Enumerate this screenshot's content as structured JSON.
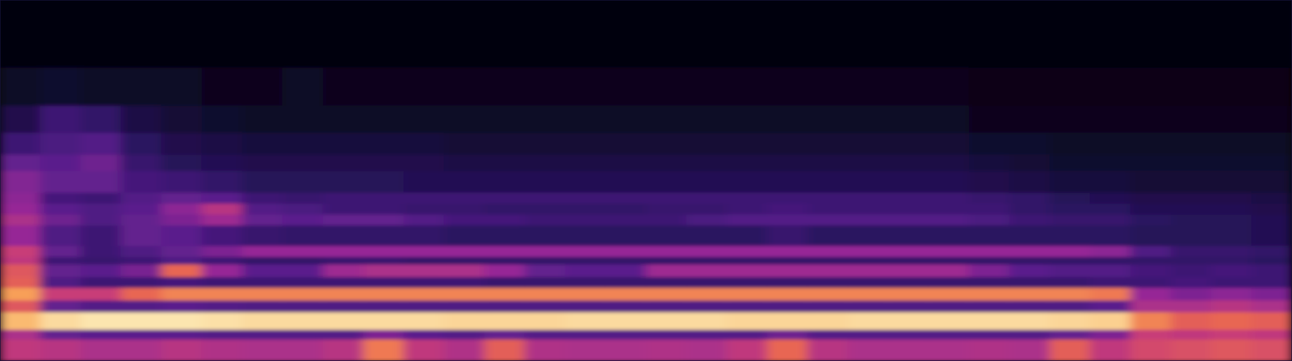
{
  "chart_data": {
    "type": "heatmap",
    "tick_labels": false,
    "xlim": [
      0,
      32
    ],
    "ylim": [
      0,
      664
    ],
    "zlim": [
      0,
      100
    ],
    "x_bins": [
      0,
      1,
      2,
      3,
      4,
      5,
      6,
      7,
      8,
      9,
      10,
      11,
      12,
      13,
      14,
      15,
      16,
      17,
      18,
      19,
      20,
      21,
      22,
      23,
      24,
      25,
      26,
      27,
      28,
      29,
      30,
      31,
      32
    ],
    "y_bins": [
      0,
      40,
      58,
      90,
      112,
      135,
      155,
      178,
      192,
      212,
      250,
      270,
      290,
      310,
      350,
      380,
      420,
      470,
      540,
      664
    ],
    "cells": [
      [
        60,
        58,
        55,
        55,
        58,
        56,
        55,
        55,
        58,
        78,
        60,
        56,
        72,
        56,
        55,
        55,
        56,
        55,
        60,
        74,
        58,
        55,
        55,
        55,
        56,
        55,
        72,
        60,
        66,
        68,
        70,
        68
      ],
      [
        55,
        40,
        38,
        38,
        38,
        36,
        36,
        36,
        36,
        45,
        38,
        36,
        40,
        36,
        36,
        36,
        36,
        36,
        36,
        42,
        36,
        36,
        36,
        36,
        36,
        36,
        40,
        45,
        62,
        60,
        62,
        60
      ],
      [
        90,
        96,
        98,
        98,
        98,
        97,
        96,
        96,
        96,
        96,
        96,
        95,
        95,
        95,
        96,
        96,
        96,
        96,
        95,
        95,
        95,
        96,
        96,
        96,
        96,
        96,
        95,
        94,
        80,
        72,
        74,
        72
      ],
      [
        70,
        40,
        36,
        36,
        38,
        36,
        35,
        35,
        35,
        35,
        35,
        35,
        35,
        35,
        35,
        35,
        35,
        35,
        35,
        35,
        35,
        35,
        35,
        35,
        35,
        35,
        35,
        38,
        55,
        55,
        58,
        55
      ],
      [
        85,
        62,
        62,
        74,
        80,
        80,
        80,
        80,
        80,
        80,
        80,
        80,
        80,
        80,
        80,
        80,
        80,
        80,
        80,
        80,
        80,
        80,
        80,
        80,
        80,
        80,
        80,
        78,
        50,
        45,
        48,
        45
      ],
      [
        72,
        35,
        30,
        30,
        32,
        30,
        30,
        30,
        30,
        30,
        30,
        30,
        28,
        28,
        28,
        28,
        28,
        28,
        28,
        28,
        28,
        28,
        28,
        28,
        28,
        28,
        28,
        30,
        30,
        32,
        30,
        30
      ],
      [
        70,
        40,
        38,
        44,
        74,
        50,
        38,
        38,
        52,
        55,
        55,
        55,
        50,
        40,
        38,
        38,
        52,
        52,
        52,
        52,
        52,
        52,
        52,
        52,
        45,
        38,
        36,
        36,
        32,
        30,
        32,
        30
      ],
      [
        60,
        30,
        28,
        30,
        35,
        30,
        26,
        26,
        28,
        28,
        26,
        26,
        26,
        26,
        26,
        26,
        26,
        26,
        26,
        26,
        26,
        26,
        26,
        26,
        26,
        26,
        26,
        26,
        26,
        26,
        26,
        24
      ],
      [
        62,
        40,
        30,
        35,
        40,
        45,
        50,
        50,
        50,
        50,
        50,
        50,
        50,
        50,
        50,
        50,
        50,
        50,
        50,
        50,
        50,
        50,
        50,
        50,
        50,
        50,
        50,
        48,
        35,
        28,
        28,
        26
      ],
      [
        50,
        35,
        30,
        40,
        38,
        32,
        28,
        26,
        26,
        26,
        26,
        24,
        24,
        24,
        24,
        24,
        24,
        24,
        24,
        28,
        24,
        24,
        24,
        24,
        24,
        24,
        24,
        24,
        22,
        22,
        22,
        20
      ],
      [
        55,
        42,
        35,
        40,
        45,
        52,
        40,
        38,
        40,
        40,
        36,
        32,
        32,
        30,
        30,
        30,
        30,
        34,
        36,
        36,
        36,
        36,
        36,
        36,
        34,
        30,
        28,
        28,
        24,
        22,
        22,
        20
      ],
      [
        50,
        38,
        35,
        38,
        48,
        58,
        36,
        34,
        30,
        30,
        28,
        28,
        26,
        26,
        26,
        26,
        28,
        28,
        30,
        32,
        30,
        30,
        30,
        30,
        30,
        26,
        24,
        24,
        20,
        20,
        20,
        18
      ],
      [
        48,
        32,
        30,
        36,
        40,
        38,
        30,
        28,
        30,
        30,
        30,
        30,
        30,
        30,
        30,
        30,
        30,
        30,
        30,
        30,
        30,
        30,
        30,
        30,
        28,
        26,
        22,
        20,
        18,
        18,
        18,
        16
      ],
      [
        46,
        40,
        40,
        32,
        30,
        26,
        22,
        22,
        22,
        22,
        20,
        20,
        20,
        20,
        20,
        20,
        20,
        20,
        20,
        20,
        20,
        20,
        20,
        20,
        18,
        16,
        14,
        14,
        12,
        12,
        12,
        12
      ],
      [
        40,
        38,
        42,
        28,
        22,
        20,
        18,
        18,
        18,
        18,
        18,
        16,
        16,
        16,
        16,
        16,
        16,
        16,
        16,
        16,
        16,
        16,
        16,
        16,
        14,
        12,
        10,
        10,
        10,
        10,
        10,
        10
      ],
      [
        30,
        34,
        36,
        24,
        18,
        16,
        14,
        14,
        14,
        14,
        14,
        12,
        12,
        12,
        12,
        12,
        12,
        12,
        12,
        12,
        12,
        12,
        12,
        12,
        10,
        10,
        8,
        8,
        8,
        8,
        8,
        8
      ],
      [
        18,
        30,
        26,
        16,
        12,
        10,
        8,
        8,
        8,
        8,
        8,
        8,
        8,
        8,
        8,
        8,
        8,
        8,
        8,
        8,
        8,
        8,
        8,
        8,
        6,
        6,
        6,
        6,
        6,
        6,
        6,
        6
      ],
      [
        8,
        10,
        8,
        8,
        8,
        6,
        6,
        8,
        6,
        6,
        6,
        6,
        6,
        6,
        6,
        6,
        6,
        6,
        6,
        6,
        6,
        6,
        6,
        6,
        4,
        4,
        4,
        4,
        4,
        4,
        4,
        4
      ],
      [
        3,
        3,
        3,
        3,
        3,
        3,
        3,
        3,
        3,
        3,
        3,
        3,
        3,
        3,
        3,
        3,
        3,
        3,
        3,
        3,
        3,
        3,
        3,
        3,
        3,
        3,
        3,
        3,
        3,
        3,
        3,
        3
      ]
    ]
  }
}
